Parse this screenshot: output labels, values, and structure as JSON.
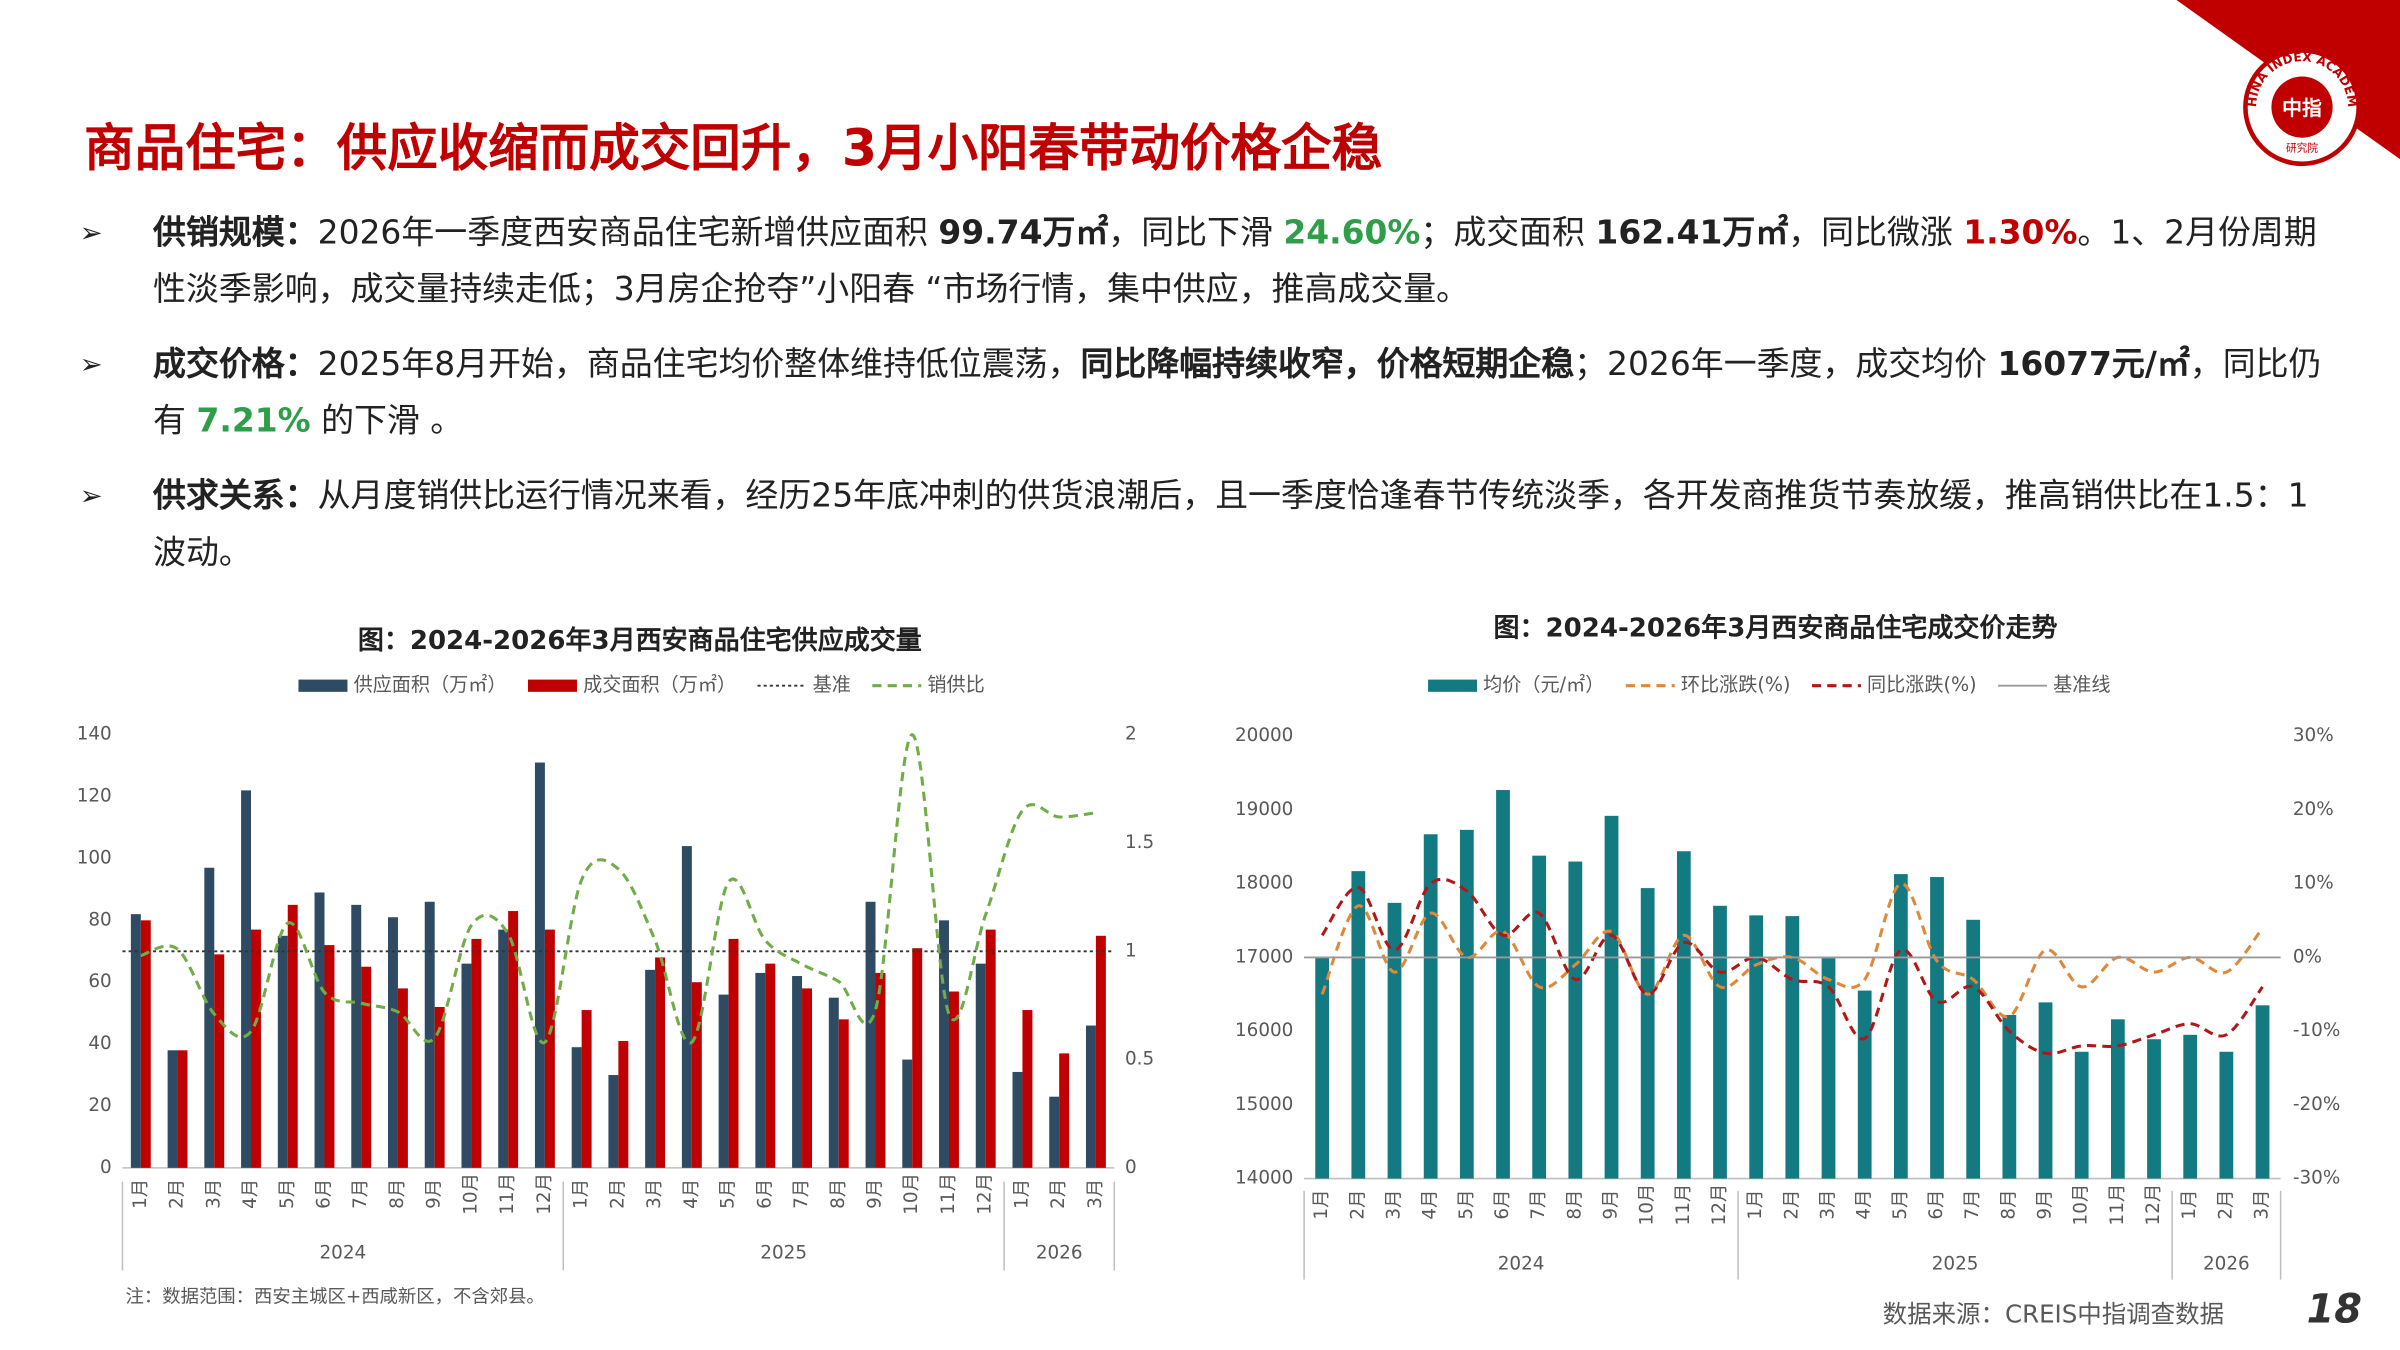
{
  "header": {
    "title": "商品住宅：供应收缩而成交回升，3月小阳春带动价格企稳"
  },
  "logo": {
    "name": "中指",
    "ring": "CHINA INDEX ACADEMY",
    "sub": "研究院"
  },
  "bullet_marker": "➢",
  "bullets": [
    [
      {
        "text": "供销规模：",
        "bold": true
      },
      {
        "text": "2026年一季度西安商品住宅新增供应面积 "
      },
      {
        "text": "99.74万㎡",
        "bold": true
      },
      {
        "text": "，同比下滑 "
      },
      {
        "text": "24.60%",
        "bold": true,
        "color": "#2e9e48"
      },
      {
        "text": "；成交面积 "
      },
      {
        "text": "162.41万㎡",
        "bold": true
      },
      {
        "text": "，同比微涨 "
      },
      {
        "text": "1.30%",
        "bold": true,
        "color": "#c00000"
      },
      {
        "text": "。1、2月份周期性淡季影响，成交量持续走低；3月房企抢夺”小阳春 “市场行情，集中供应，推高成交量。"
      }
    ],
    [
      {
        "text": "成交价格：",
        "bold": true
      },
      {
        "text": "2025年8月开始，商品住宅均价整体维持低位震荡，"
      },
      {
        "text": "同比降幅持续收窄，价格短期企稳",
        "bold": true
      },
      {
        "text": "；2026年一季度，成交均价 "
      },
      {
        "text": "16077元/㎡",
        "bold": true
      },
      {
        "text": "，同比仍有 "
      },
      {
        "text": "7.21%",
        "bold": true,
        "color": "#2e9e48"
      },
      {
        "text": " 的下滑 。"
      }
    ],
    [
      {
        "text": "供求关系：",
        "bold": true
      },
      {
        "text": "从月度销供比运行情况来看，经历25年底冲刺的供货浪潮后，且一季度恰逢春节传统淡季，各开发商推货节奏放缓，推高销供比在1.5：1波动。"
      }
    ]
  ],
  "chart_data": [
    {
      "type": "combo",
      "title": "图：2024-2026年3月西安商品住宅供应成交量",
      "categories": [
        "1月",
        "2月",
        "3月",
        "4月",
        "5月",
        "6月",
        "7月",
        "8月",
        "9月",
        "10月",
        "11月",
        "12月",
        "1月",
        "2月",
        "3月",
        "4月",
        "5月",
        "6月",
        "7月",
        "8月",
        "9月",
        "10月",
        "11月",
        "12月",
        "1月",
        "2月",
        "3月"
      ],
      "years": [
        "2024",
        "2025",
        "2026"
      ],
      "ylim": [
        0,
        140
      ],
      "yticks": [
        0,
        20,
        40,
        60,
        80,
        100,
        120,
        140
      ],
      "y2lim": [
        0,
        2
      ],
      "y2ticks": [
        0,
        0.5,
        1,
        1.5,
        2
      ],
      "series": [
        {
          "name": "供应面积（万㎡）",
          "type": "bar",
          "color": "#2f4b63",
          "values": [
            82,
            38,
            97,
            122,
            75,
            89,
            85,
            81,
            86,
            66,
            77,
            131,
            39,
            30,
            64,
            104,
            56,
            63,
            62,
            55,
            86,
            35,
            80,
            66,
            31,
            23,
            46
          ]
        },
        {
          "name": "成交面积（万㎡）",
          "type": "bar",
          "color": "#c00000",
          "values": [
            80,
            38,
            69,
            77,
            85,
            72,
            65,
            58,
            52,
            74,
            83,
            77,
            51,
            41,
            68,
            60,
            74,
            66,
            58,
            48,
            63,
            71,
            57,
            77,
            51,
            37,
            75
          ]
        },
        {
          "name": "基准",
          "type": "baseline",
          "axis": "y2",
          "value": 1,
          "color": "#333333",
          "style": "dotted"
        },
        {
          "name": "销供比",
          "type": "line",
          "axis": "y2",
          "color": "#70ad47",
          "style": "dashed",
          "values": [
            0.98,
            1.01,
            0.71,
            0.63,
            1.13,
            0.81,
            0.76,
            0.72,
            0.6,
            1.12,
            1.08,
            0.58,
            1.33,
            1.38,
            1.05,
            0.58,
            1.32,
            1.05,
            0.94,
            0.86,
            0.73,
            2.0,
            0.71,
            1.17,
            1.65,
            1.62,
            1.64
          ]
        }
      ],
      "note": "注：数据范围：西安主城区+西咸新区，不含郊县。"
    },
    {
      "type": "combo",
      "title": "图：2024-2026年3月西安商品住宅成交价走势",
      "categories": [
        "1月",
        "2月",
        "3月",
        "4月",
        "5月",
        "6月",
        "7月",
        "8月",
        "9月",
        "10月",
        "11月",
        "12月",
        "1月",
        "2月",
        "3月",
        "4月",
        "5月",
        "6月",
        "7月",
        "8月",
        "9月",
        "10月",
        "11月",
        "12月",
        "1月",
        "2月",
        "3月"
      ],
      "years": [
        "2024",
        "2025",
        "2026"
      ],
      "ylim": [
        14000,
        20000
      ],
      "yticks": [
        14000,
        15000,
        16000,
        17000,
        18000,
        19000,
        20000
      ],
      "y2lim": [
        -30,
        30
      ],
      "y2ticks": [
        {
          "value": -30,
          "label": "-30%"
        },
        {
          "value": -20,
          "label": "-20%"
        },
        {
          "value": -10,
          "label": "-10%"
        },
        {
          "value": 0,
          "label": "0%"
        },
        {
          "value": 10,
          "label": "10%"
        },
        {
          "value": 20,
          "label": "20%"
        },
        {
          "value": 30,
          "label": "30%"
        }
      ],
      "series": [
        {
          "name": "均价（元/㎡）",
          "type": "bar",
          "color": "#127a80",
          "values": [
            17010,
            18170,
            17740,
            18670,
            18730,
            19270,
            18380,
            18300,
            18920,
            17940,
            18440,
            17700,
            17570,
            17560,
            16990,
            16550,
            18130,
            18090,
            17510,
            16220,
            16390,
            15720,
            16160,
            15890,
            15950,
            15720,
            16350
          ]
        },
        {
          "name": "环比涨跌(%)",
          "type": "line",
          "axis": "y2",
          "color": "#e0873a",
          "style": "dashed",
          "values": [
            -5,
            7,
            -2,
            6,
            0,
            3.5,
            -4,
            -1,
            3.5,
            -5,
            3,
            -4,
            -1,
            0,
            -3,
            -3,
            10,
            -0.5,
            -3,
            -8,
            1,
            -4,
            0,
            -2,
            0,
            -2,
            4
          ]
        },
        {
          "name": "同比涨跌(%)",
          "type": "line",
          "axis": "y2",
          "color": "#b01818",
          "style": "dashed",
          "values": [
            3,
            9.5,
            1,
            10,
            9,
            3,
            6,
            -3,
            3,
            -5,
            2,
            -2,
            0,
            -3,
            -4,
            -11,
            1,
            -6,
            -4,
            -10,
            -13,
            -12,
            -12,
            -10.5,
            -9,
            -10.5,
            -4
          ]
        },
        {
          "name": "基准线",
          "type": "baseline",
          "axis": "y2",
          "value": 0,
          "color": "#9a9a9a",
          "style": "solid"
        }
      ],
      "source": "数据来源：CREIS中指调查数据"
    }
  ],
  "page_number": "18"
}
